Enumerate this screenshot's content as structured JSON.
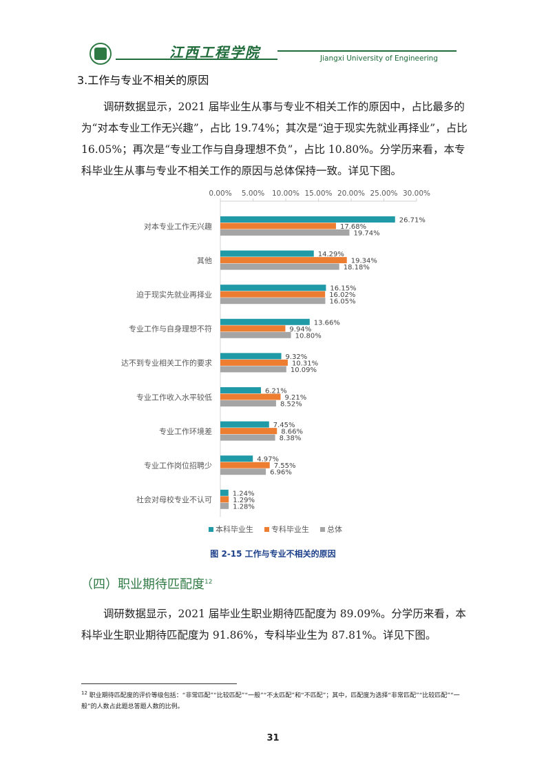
{
  "header": {
    "school_name_cn": "江西工程学院",
    "school_name_en": "Jiangxi University of Engineering"
  },
  "section_heading": "3.工作与专业不相关的原因",
  "paragraph1": "调研数据显示，2021 届毕业生从事与专业不相关工作的原因中，占比最多的为“对本专业工作无兴趣”，占比 19.74%；其次是“迫于现实先就业再择业”，占比 16.05%；再次是“专业工作与自身理想不负”，占比 10.80%。分学历来看，本专科毕业生从事与专业不相关工作的原因与总体保持一致。详见下图。",
  "figure_caption": "图 2-15 工作与专业不相关的原因",
  "subsection": {
    "title": "（四）职业期待匹配度",
    "footnote_ref": "12"
  },
  "paragraph2": "调研数据显示，2021 届毕业生职业期待匹配度为 89.09%。分学历来看，本科毕业生职业期待匹配度为 91.86%，专科毕业生为 87.81%。详见下图。",
  "footnote": {
    "number": "12",
    "text": "职业期待匹配度的评价等级包括：“非常匹配”“比较匹配”“一般”“不太匹配”和“不匹配”；其中，匹配度为选择“非常匹配”“比较匹配”“一般”的人数占此题总答题人数的比例。"
  },
  "page_number": "31",
  "chart_data": {
    "type": "bar",
    "orientation": "horizontal",
    "title": "",
    "xlim": [
      0,
      30
    ],
    "x_ticks": [
      "0.00%",
      "5.00%",
      "10.00%",
      "15.00%",
      "20.00%",
      "25.00%",
      "30.00%"
    ],
    "x_tick_values": [
      0,
      5,
      10,
      15,
      20,
      25,
      30
    ],
    "axis_position": "top",
    "grid": false,
    "legend_position": "bottom",
    "categories": [
      "对本专业工作无兴趣",
      "其他",
      "迫于现实先就业再择业",
      "专业工作与自身理想不符",
      "达不到专业相关工作的要求",
      "专业工作收入水平较低",
      "专业工作环境差",
      "专业工作岗位招聘少",
      "社会对母校专业不认可"
    ],
    "series": [
      {
        "name": "本科毕业生",
        "color": "#1f9aa6",
        "values": [
          26.71,
          14.29,
          16.15,
          13.66,
          9.32,
          6.21,
          7.45,
          4.97,
          1.24
        ],
        "labels": [
          "26.71%",
          "14.29%",
          "16.15%",
          "13.66%",
          "9.32%",
          "6.21%",
          "7.45%",
          "4.97%",
          "1.24%"
        ]
      },
      {
        "name": "专科毕业生",
        "color": "#ed7d31",
        "values": [
          17.68,
          19.34,
          16.02,
          9.94,
          10.31,
          9.21,
          8.66,
          7.55,
          1.29
        ],
        "labels": [
          "17.68%",
          "19.34%",
          "16.02%",
          "9.94%",
          "10.31%",
          "9.21%",
          "8.66%",
          "7.55%",
          "1.29%"
        ]
      },
      {
        "name": "总体",
        "color": "#a5a5a5",
        "values": [
          19.74,
          18.18,
          16.05,
          10.8,
          10.09,
          8.52,
          8.38,
          6.96,
          1.28
        ],
        "labels": [
          "19.74%",
          "18.18%",
          "16.05%",
          "10.80%",
          "10.09%",
          "8.52%",
          "8.38%",
          "6.96%",
          "1.28%"
        ]
      }
    ]
  }
}
